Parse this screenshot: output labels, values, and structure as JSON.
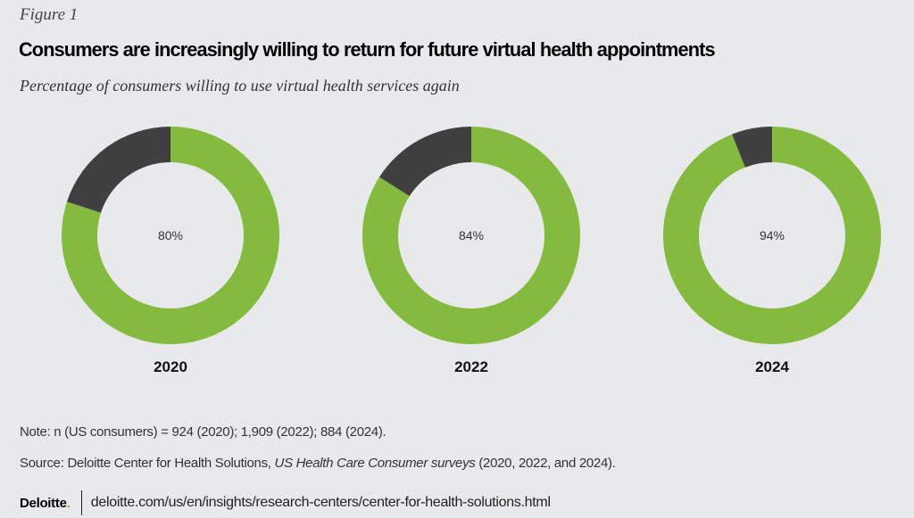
{
  "figure_label": "Figure 1",
  "title": "Consumers are increasingly willing to return for future virtual health appointments",
  "subtitle": "Percentage of consumers willing to use virtual health services again",
  "colors": {
    "positive": "#84bb3f",
    "remainder": "#404040",
    "background": "#e8e9eb",
    "brand_accent": "#86bc25"
  },
  "chart_data": {
    "type": "pie",
    "subtype": "donut",
    "title": "Consumers are increasingly willing to return for future virtual health appointments",
    "subtitle": "Percentage of consumers willing to use virtual health services again",
    "unit": "%",
    "charts": [
      {
        "label": "2020",
        "value": 80,
        "value_label": "80%",
        "remainder": 20
      },
      {
        "label": "2022",
        "value": 84,
        "value_label": "84%",
        "remainder": 16
      },
      {
        "label": "2024",
        "value": 94,
        "value_label": "94%",
        "remainder": 6
      }
    ],
    "legend": "none"
  },
  "note": "Note: n (US consumers) = 924 (2020); 1,909 (2022); 884 (2024).",
  "source": {
    "prefix": "Source: Deloitte Center for Health Solutions, ",
    "italic": "US Health Care Consumer surveys",
    "suffix": " (2020, 2022, and 2024)."
  },
  "footer": {
    "brand": "Deloitte",
    "brand_dot": ".",
    "url": "deloitte.com/us/en/insights/research-centers/center-for-health-solutions.html"
  }
}
